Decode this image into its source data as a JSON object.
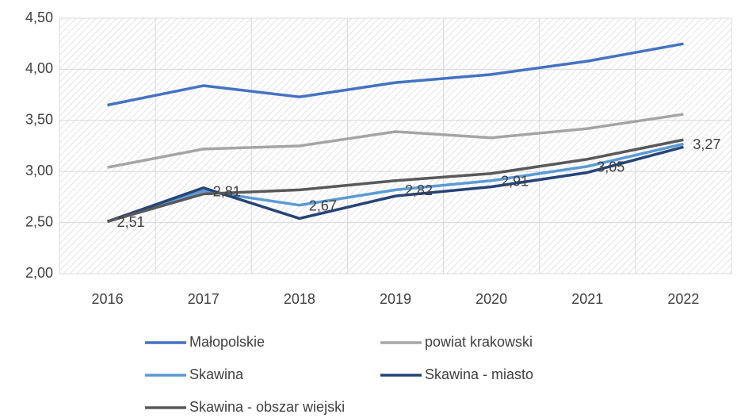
{
  "chart_data": {
    "type": "line",
    "categories": [
      "2016",
      "2017",
      "2018",
      "2019",
      "2020",
      "2021",
      "2022"
    ],
    "series": [
      {
        "name": "Małopolskie",
        "color": "#4472c4",
        "values": [
          3.65,
          3.84,
          3.73,
          3.87,
          3.95,
          4.08,
          4.25
        ]
      },
      {
        "name": "powiat krakowski",
        "color": "#a5a5a5",
        "values": [
          3.04,
          3.22,
          3.25,
          3.39,
          3.33,
          3.42,
          3.56
        ]
      },
      {
        "name": "Skawina",
        "color": "#5b9bd5",
        "values": [
          2.51,
          2.81,
          2.67,
          2.82,
          2.91,
          3.05,
          3.27
        ],
        "value_labels": [
          "2,51",
          "2,81",
          "2,67",
          "2,82",
          "2,91",
          "3,05",
          "3,27"
        ]
      },
      {
        "name": "Skawina - miasto",
        "color": "#264478",
        "values": [
          2.51,
          2.84,
          2.54,
          2.76,
          2.85,
          2.99,
          3.24
        ]
      },
      {
        "name": "Skawina - obszar wiejski",
        "color": "#595959",
        "values": [
          2.51,
          2.78,
          2.82,
          2.91,
          2.98,
          3.12,
          3.31
        ]
      }
    ],
    "ylim": [
      2,
      4.5
    ],
    "yticks": [
      {
        "value": 2,
        "label": "2,00"
      },
      {
        "value": 2.5,
        "label": "2,50"
      },
      {
        "value": 3,
        "label": "3,00"
      },
      {
        "value": 3.5,
        "label": "3,50"
      },
      {
        "value": 4,
        "label": "4,00"
      },
      {
        "value": 4.5,
        "label": "4,50"
      }
    ],
    "grid": true
  }
}
